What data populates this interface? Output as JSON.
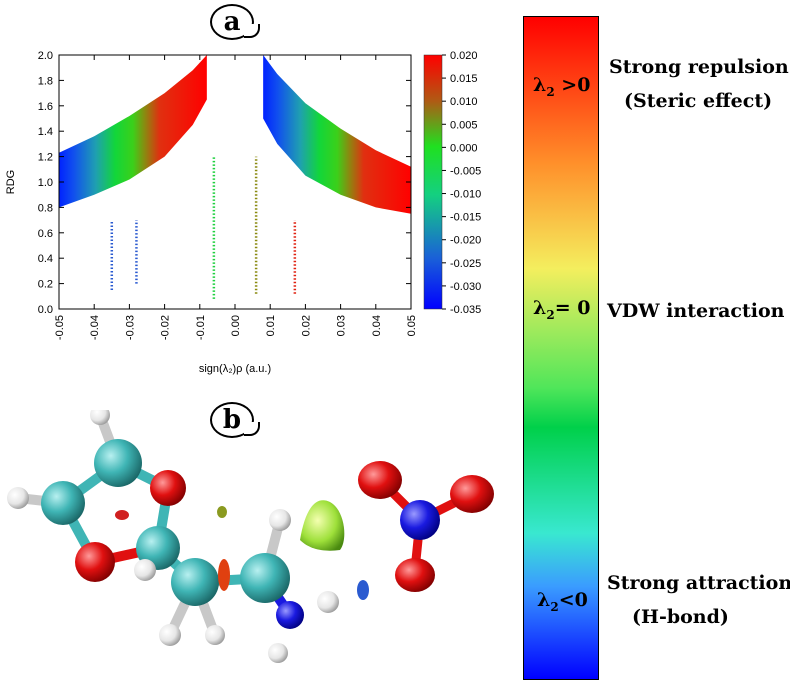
{
  "panel_labels": {
    "a": "a",
    "b": "b"
  },
  "chart_data": {
    "type": "scatter",
    "title": "",
    "xlabel": "sign(λ₂)ρ (a.u.)",
    "ylabel": "RDG",
    "xlim": [
      -0.05,
      0.05
    ],
    "ylim": [
      0.0,
      2.0
    ],
    "xticks": [
      "-0.05",
      "-0.04",
      "-0.03",
      "-0.02",
      "-0.01",
      "0.00",
      "0.01",
      "0.02",
      "0.03",
      "0.04",
      "0.05"
    ],
    "yticks": [
      "0.0",
      "0.2",
      "0.4",
      "0.6",
      "0.8",
      "1.0",
      "1.2",
      "1.4",
      "1.6",
      "1.8",
      "2.0"
    ],
    "colorbar": {
      "range": [
        -0.035,
        0.02
      ],
      "ticks": [
        "0.020",
        "0.015",
        "0.010",
        "0.005",
        "0.000",
        "-0.005",
        "-0.010",
        "-0.015",
        "-0.020",
        "-0.025",
        "-0.030",
        "-0.035"
      ]
    },
    "series": [
      {
        "name": "left branch band (upper)",
        "x": [
          -0.05,
          -0.04,
          -0.03,
          -0.02,
          -0.012,
          -0.008
        ],
        "y": [
          1.23,
          1.36,
          1.52,
          1.7,
          1.88,
          2.0
        ]
      },
      {
        "name": "left branch band (lower)",
        "x": [
          -0.05,
          -0.04,
          -0.03,
          -0.02,
          -0.012,
          -0.008
        ],
        "y": [
          0.8,
          0.9,
          1.02,
          1.2,
          1.45,
          1.65
        ]
      },
      {
        "name": "right branch band (upper)",
        "x": [
          0.008,
          0.012,
          0.02,
          0.03,
          0.04,
          0.05
        ],
        "y": [
          2.0,
          1.85,
          1.62,
          1.42,
          1.25,
          1.12
        ]
      },
      {
        "name": "right branch band (lower)",
        "x": [
          0.008,
          0.012,
          0.02,
          0.03,
          0.04,
          0.05
        ],
        "y": [
          1.5,
          1.3,
          1.05,
          0.9,
          0.8,
          0.75
        ]
      },
      {
        "name": "spike near -0.006",
        "x": [
          -0.006,
          -0.006
        ],
        "y": [
          0.08,
          1.2
        ]
      },
      {
        "name": "spike near 0.006",
        "x": [
          0.006,
          0.006
        ],
        "y": [
          0.12,
          1.2
        ]
      },
      {
        "name": "spike near -0.035",
        "x": [
          -0.035,
          -0.035
        ],
        "y": [
          0.15,
          0.7
        ]
      },
      {
        "name": "spike near -0.028",
        "x": [
          -0.028,
          -0.028
        ],
        "y": [
          0.2,
          0.7
        ]
      },
      {
        "name": "spike near 0.017",
        "x": [
          0.017,
          0.017
        ],
        "y": [
          0.12,
          0.7
        ]
      }
    ]
  },
  "scale": {
    "positive_label": "λ",
    "positive_sub": "2",
    "positive_rel": " >0",
    "zero_label": "λ",
    "zero_sub": "2",
    "zero_rel": "= 0",
    "negative_label": "λ",
    "negative_sub": "2",
    "negative_rel": "<0",
    "repulsion_line1": "Strong repulsion",
    "repulsion_line2": "(Steric effect)",
    "vdw": "VDW interaction",
    "attraction_line1": "Strong attraction",
    "attraction_line2": "(H-bond)",
    "colors": {
      "red": "#ff0000",
      "orange": "#ff8f2a",
      "yellow": "#f4ee5e",
      "green": "#00d04a",
      "cyan": "#39e8d0",
      "blue": "#0000ff"
    }
  },
  "molecule": {
    "atom_colors": {
      "carbon": "#3fb5b5",
      "oxygen": "#e01010",
      "hydrogen": "#f2f2f2",
      "nitrogen": "#1a1ae0"
    }
  }
}
